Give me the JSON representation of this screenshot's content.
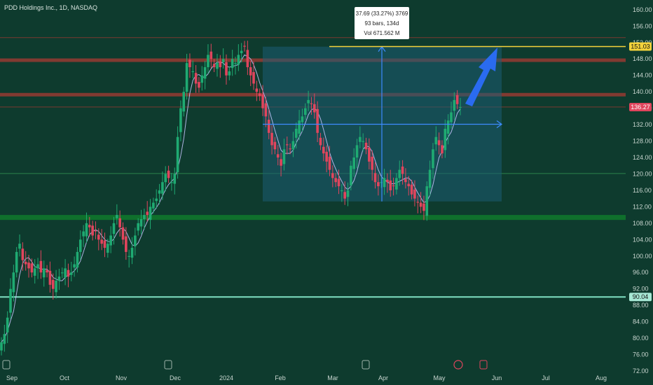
{
  "header": {
    "title": "PDD Holdings Inc., 1D, NASDAQ"
  },
  "colors": {
    "background": "#0e3b2e",
    "up": "#1faa72",
    "down": "#e0455d",
    "ma": "#c8c8ff",
    "range_box": "#1c5c75",
    "range_line": "#3d8cff",
    "target_line": "#f5d33b",
    "support_band": "#0f7a2c",
    "support_line": "#7fe0c2",
    "resistance": "#a83a32",
    "arrow": "#2a6bf0"
  },
  "chart_data": {
    "type": "candlestick",
    "title": "PDD Holdings Inc., 1D, NASDAQ",
    "ylim": [
      72,
      161
    ],
    "y_ticks": [
      "72.00",
      "76.00",
      "80.00",
      "84.00",
      "88.00",
      "92.00",
      "96.00",
      "100.00",
      "104.00",
      "108.00",
      "112.00",
      "116.00",
      "120.00",
      "124.00",
      "128.00",
      "132.00",
      "136.00",
      "140.00",
      "144.00",
      "148.00",
      "152.00",
      "156.00",
      "160.00"
    ],
    "x_ticks": [
      "Sep",
      "Oct",
      "Nov",
      "Dec",
      "2024",
      "Feb",
      "Mar",
      "Apr",
      "May",
      "Jun",
      "Jul",
      "Aug"
    ],
    "price_labels": [
      {
        "label": "151.03",
        "value": 151.03,
        "style": "target"
      },
      {
        "label": "136.27",
        "value": 136.27,
        "style": "last"
      },
      {
        "label": "90.04",
        "value": 90.04,
        "style": "support"
      }
    ],
    "horizontal_levels": [
      {
        "value": 153.2,
        "kind": "resistance-thin"
      },
      {
        "value": 147.7,
        "kind": "resistance"
      },
      {
        "value": 139.3,
        "kind": "resistance"
      },
      {
        "value": 136.3,
        "kind": "resistance-thin"
      },
      {
        "value": 120.1,
        "kind": "green-thin"
      },
      {
        "value": 110.0,
        "kind": "support-band-top"
      },
      {
        "value": 108.8,
        "kind": "support-band-bottom"
      },
      {
        "value": 90.04,
        "kind": "support"
      }
    ],
    "range_measure": {
      "text_lines": [
        "37.69 (33.27%) 3769",
        "93 bars, 134d",
        "Vol 671.562 M"
      ],
      "top": 151.0,
      "bottom": 113.3,
      "mid": 132.1
    },
    "closes": [
      79,
      81,
      85,
      92,
      96,
      101,
      103,
      99,
      98,
      97,
      96,
      97,
      98,
      96,
      97,
      96,
      93,
      92,
      94,
      95,
      96,
      97,
      95,
      96,
      98,
      101,
      104,
      106,
      108,
      107,
      105,
      106,
      104,
      103,
      102,
      103,
      105,
      108,
      110,
      107,
      104,
      101,
      100,
      102,
      105,
      108,
      109,
      110,
      110,
      112,
      113,
      114,
      116,
      118,
      120,
      119,
      118,
      120,
      129,
      136,
      140,
      147,
      146,
      145,
      142,
      141,
      144,
      146,
      149,
      148,
      146,
      147,
      146,
      148,
      144,
      145,
      148,
      147,
      149,
      150,
      151,
      146,
      144,
      142,
      140,
      139,
      136,
      134,
      130,
      127,
      126,
      124,
      122,
      126,
      127,
      126,
      128,
      131,
      133,
      134,
      136,
      138,
      137,
      135,
      130,
      127,
      125,
      123,
      121,
      119,
      118,
      117,
      116,
      114,
      116,
      122,
      124,
      127,
      129,
      128,
      126,
      123,
      121,
      118,
      117,
      118,
      119,
      118,
      116,
      117,
      119,
      121,
      120,
      118,
      117,
      115,
      114,
      113,
      112,
      111,
      117,
      121,
      126,
      129,
      127,
      125,
      131,
      133,
      135,
      138,
      137,
      136.27
    ],
    "ma_extra": "MA"
  }
}
